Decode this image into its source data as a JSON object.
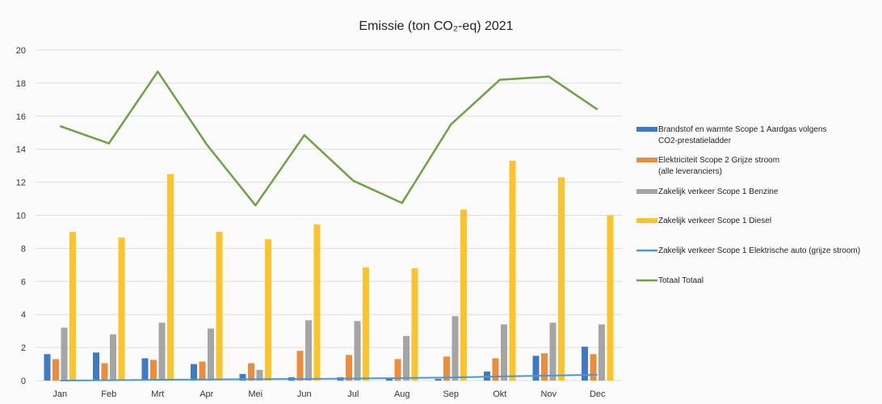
{
  "chart_data": {
    "type": "bar",
    "title": "Emissie (ton CO₂-eq) 2021",
    "xlabel": "",
    "ylabel": "",
    "ylim": [
      0,
      20
    ],
    "yticks": [
      0,
      2,
      4,
      6,
      8,
      10,
      12,
      14,
      16,
      18,
      20
    ],
    "grid": true,
    "legend_position": "right",
    "categories": [
      "Jan",
      "Feb",
      "Mrt",
      "Apr",
      "Mei",
      "Jun",
      "Jul",
      "Aug",
      "Sep",
      "Okt",
      "Nov",
      "Dec"
    ],
    "series": [
      {
        "name": "Brandstof en warmte Scope 1 Aardgas volgens CO2-prestatieladder",
        "name_lines": [
          "Brandstof en warmte Scope 1 Aardgas volgens",
          "CO2-prestatieladder"
        ],
        "type": "bar",
        "color": "#3f7ac4",
        "values": [
          1.6,
          1.7,
          1.35,
          1.0,
          0.4,
          0.2,
          0.2,
          0.1,
          0.1,
          0.55,
          1.5,
          2.05
        ]
      },
      {
        "name": "Elektriciteit Scope 2 Grijze stroom (alle leveranciers)",
        "name_lines": [
          "Elektriciteit Scope 2 Grijze stroom",
          "(alle leveranciers)"
        ],
        "type": "bar",
        "color": "#ef8c3c",
        "values": [
          1.3,
          1.05,
          1.25,
          1.15,
          1.05,
          1.8,
          1.55,
          1.3,
          1.45,
          1.35,
          1.65,
          1.6
        ]
      },
      {
        "name": "Zakelijk verkeer Scope 1 Benzine",
        "name_lines": [
          "Zakelijk verkeer Scope 1 Benzine"
        ],
        "type": "bar",
        "color": "#a5a5a5",
        "values": [
          3.2,
          2.8,
          3.5,
          3.15,
          0.65,
          3.65,
          3.6,
          2.7,
          3.9,
          3.4,
          3.5,
          3.4
        ]
      },
      {
        "name": "Zakelijk verkeer Scope 1 Diesel",
        "name_lines": [
          "Zakelijk verkeer Scope 1 Diesel"
        ],
        "type": "bar",
        "color": "#fcc32a",
        "values": [
          9.0,
          8.65,
          12.5,
          9.0,
          8.55,
          9.45,
          6.85,
          6.8,
          10.35,
          13.3,
          12.3,
          10.0
        ]
      },
      {
        "name": "Zakelijk verkeer Scope 1 Elektrische auto (grijze stroom)",
        "name_lines": [
          "Zakelijk verkeer Scope 1 Elektrische auto (grijze stroom)"
        ],
        "type": "line",
        "color": "#4a97d6",
        "values": [
          0.0,
          0.02,
          0.05,
          0.07,
          0.09,
          0.1,
          0.12,
          0.15,
          0.18,
          0.25,
          0.3,
          0.35
        ]
      },
      {
        "name": "Totaal Totaal",
        "name_lines": [
          "Totaal Totaal"
        ],
        "type": "line",
        "color": "#70a044",
        "values": [
          15.4,
          14.35,
          18.7,
          14.3,
          10.6,
          14.85,
          12.1,
          10.75,
          15.5,
          18.2,
          18.4,
          16.4
        ]
      }
    ]
  }
}
